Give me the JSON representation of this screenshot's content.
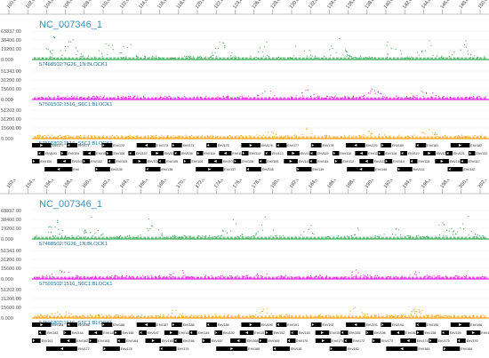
{
  "panels": [
    {
      "sequence": "NC_007346_1",
      "ruler": [
        "100,000",
        "102,000",
        "104,000",
        "106,000",
        "108,000",
        "110,000",
        "112,000",
        "114,000",
        "116,000",
        "118,000",
        "120,000",
        "122,000",
        "124,000",
        "126,000",
        "128,000",
        "130,000",
        "132,000",
        "134,000",
        "136,000",
        "138,000",
        "140,000",
        "142,000",
        "144,000",
        "146,000",
        "148,000",
        "150,000"
      ],
      "tracks": [
        {
          "label": "57468502:TG26_1N:BLOCK1",
          "values": [
            "63837.00",
            "38400.00",
            "19200.00",
            "0.000"
          ],
          "color": "#3fae5a"
        },
        {
          "label": "57501502:1516_S6C1:BLOCK1",
          "values": [
            "51343.00",
            "31200.00",
            "15600.00",
            "0.000"
          ],
          "color": "#e020e0"
        },
        {
          "label": "57501802:1516_S5C1:BLOCK1",
          "values": [
            "51202.00",
            "31200.00",
            "15600.00",
            "0.000"
          ],
          "color": "#ffa31a"
        }
      ],
      "genes": {
        "row1": [
          "EhV177",
          "EhV171",
          "EhV172",
          "EhV173",
          "EhV174",
          "EhV175",
          "EhV176",
          "EhV177",
          "EhV178",
          "EhV179",
          "EhV180",
          "EhV181",
          "EhV182"
        ],
        "row2": [
          "EhV103",
          "EhV104",
          "EhV105",
          "EhV106",
          "EhV107",
          "EhV108",
          "EhV109",
          "EhV110",
          "EhV111",
          "EhV112",
          "EhV113",
          "EhV114",
          "EhV115",
          "EhV116",
          "EhV117",
          "EhV118",
          "EhV119",
          "EhV120",
          "EhV121",
          "EhV122"
        ],
        "row3": [
          "EhV100",
          "EhV101",
          "EhV102",
          "EhV103",
          "EhV104",
          "EhV105",
          "EhV106",
          "EhV107",
          "EhV108",
          "EhV109",
          "EhV110",
          "EhV111",
          "EhV112",
          "EhV113",
          "EhV114",
          "EhV115",
          "EhV116",
          "EhV117"
        ],
        "row4": [
          "EhV",
          "EhV135",
          "EhV136",
          "EhV137",
          "EhV138",
          "EhV139",
          "EhV140",
          "EhV141",
          "EhV142"
        ]
      }
    },
    {
      "sequence": "NC_007346_1",
      "ruler": [
        "152,000",
        "154,000",
        "156,000",
        "158,000",
        "160,000",
        "162,000",
        "164,000",
        "166,000",
        "168,000",
        "170,000",
        "172,000",
        "174,000",
        "176,000",
        "178,000",
        "180,000",
        "182,000",
        "184,000",
        "186,000",
        "188,000",
        "190,000",
        "192,000",
        "194,000",
        "196,000",
        "198,000",
        "200,000",
        "202,000"
      ],
      "tracks": [
        {
          "label": "57468502:TG26_1N:BLOCK1",
          "values": [
            "63837.00",
            "38400.00",
            "19200.00",
            "0.000"
          ],
          "color": "#3fae5a"
        },
        {
          "label": "57501502:1516_S6C1:BLOCK1",
          "values": [
            "51343.00",
            "31200.00",
            "15600.00",
            "0.000"
          ],
          "color": "#e020e0"
        },
        {
          "label": "57501802:1516_S5C1:BLOCK1",
          "values": [
            "51202.00",
            "31200.00",
            "15600.00",
            "0.000"
          ],
          "color": "#ffa31a"
        }
      ],
      "genes": {
        "row1": [
          "EhV184",
          "EhV185",
          "EhV186",
          "EhV187",
          "EhV188",
          "EhV189",
          "EhV190",
          "EhV191",
          "EhV192",
          "EhV193",
          "EhV194",
          "EhV195",
          "EhV196"
        ],
        "row2": [
          "EhV143",
          "EhV144",
          "EhV145",
          "EhV146",
          "EhV147",
          "EhV148",
          "EhV149",
          "EhV150",
          "EhV151",
          "EhV152",
          "EhV153",
          "EhV154",
          "EhV155",
          "EhV156",
          "EhV157",
          "EhV158",
          "EhV159",
          "EhV160"
        ],
        "row3": [
          "EhV161",
          "EhV162",
          "EhV163",
          "EhV164",
          "EhV165",
          "EhV166",
          "EhV167",
          "EhV168",
          "EhV169",
          "EhV170",
          "EhV171",
          "EhV172",
          "EhV173",
          "EhV174",
          "EhV175",
          "EhV176"
        ],
        "row4": [
          "EhV177",
          "EhV178",
          "EhV179",
          "EhV180",
          "EhV181",
          "EhV182",
          "EhV183",
          "EhV184"
        ]
      }
    }
  ]
}
